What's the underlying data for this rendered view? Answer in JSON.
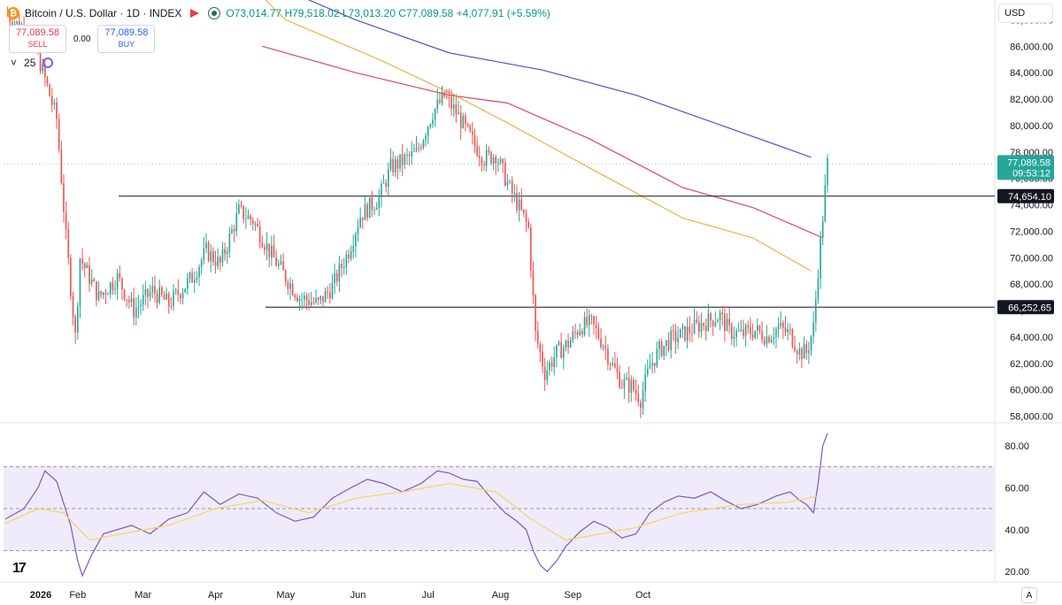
{
  "header": {
    "coin_symbol": "₿",
    "symbol_text": "Bitcoin / U.S. Dollar · 1D · INDEX",
    "open": "O73,014.77",
    "high": "H79,518.02",
    "low": "L73,013.20",
    "close": "C77,089.58",
    "change": "+4,077.91 (+5.59%)"
  },
  "trade": {
    "sell_price": "77,089.58",
    "sell_label": "SELL",
    "spread": "0.00",
    "buy_price": "77,089.58",
    "buy_label": "BUY"
  },
  "indicator": {
    "chevron": "˅",
    "value": "25"
  },
  "currency": "USD",
  "logo": "17",
  "auto_scale": "A",
  "colors": {
    "up": "#26a69a",
    "down": "#ef5350",
    "ma_blue": "#5b4fcf",
    "ma_red": "#d84a5b",
    "ma_orange": "#f0b04a",
    "rsi": "#7e57c2",
    "rsi_ma": "#f7d35f"
  },
  "chart_data": {
    "type": "candlestick",
    "x_ticks": [
      "2026",
      "Feb",
      "Mar",
      "Apr",
      "May",
      "Jun",
      "Jul",
      "Aug",
      "Sep",
      "Oct"
    ],
    "y_ticks": [
      "58,000.00",
      "60,000.00",
      "62,000.00",
      "64,000.00",
      "66,000.00",
      "68,000.00",
      "70,000.00",
      "72,000.00",
      "74,000.00",
      "76,000.00",
      "78,000.00",
      "80,000.00",
      "82,000.00",
      "84,000.00",
      "86,000.00",
      "88,000.00"
    ],
    "ylim": [
      57500,
      89500
    ],
    "last_price": {
      "value": 77089.58,
      "label": "77,089.58",
      "countdown": "09:53:12"
    },
    "horizontal_lines": [
      {
        "value": 74654.1,
        "label": "74,654.10"
      },
      {
        "value": 66252.65,
        "label": "66,252.65"
      }
    ],
    "close_path": [
      [
        0,
        88500
      ],
      [
        12,
        86500
      ],
      [
        22,
        80500
      ],
      [
        26,
        71500
      ],
      [
        30,
        64000
      ],
      [
        32,
        70000
      ],
      [
        40,
        67000
      ],
      [
        48,
        68500
      ],
      [
        55,
        66000
      ],
      [
        63,
        67500
      ],
      [
        70,
        66500
      ],
      [
        80,
        68500
      ],
      [
        86,
        70500
      ],
      [
        92,
        69500
      ],
      [
        100,
        73500
      ],
      [
        106,
        72800
      ],
      [
        113,
        70500
      ],
      [
        120,
        68500
      ],
      [
        126,
        67000
      ],
      [
        134,
        66500
      ],
      [
        140,
        67800
      ],
      [
        147,
        70500
      ],
      [
        152,
        73200
      ],
      [
        160,
        74500
      ],
      [
        165,
        76800
      ],
      [
        170,
        77300
      ],
      [
        176,
        77900
      ],
      [
        183,
        81000
      ],
      [
        188,
        82200
      ],
      [
        193,
        81000
      ],
      [
        200,
        78800
      ],
      [
        205,
        77500
      ],
      [
        210,
        77800
      ],
      [
        216,
        75200
      ],
      [
        220,
        73800
      ],
      [
        224,
        72200
      ],
      [
        227,
        64200
      ],
      [
        231,
        61300
      ],
      [
        236,
        62800
      ],
      [
        241,
        63500
      ],
      [
        246,
        64800
      ],
      [
        251,
        65000
      ],
      [
        256,
        63500
      ],
      [
        260,
        61800
      ],
      [
        264,
        60500
      ],
      [
        268,
        60300
      ],
      [
        272,
        59300
      ],
      [
        276,
        61800
      ],
      [
        280,
        63000
      ],
      [
        285,
        63800
      ],
      [
        290,
        64200
      ],
      [
        296,
        64800
      ],
      [
        302,
        65300
      ],
      [
        306,
        65600
      ],
      [
        310,
        64400
      ],
      [
        315,
        64200
      ],
      [
        321,
        64500
      ],
      [
        326,
        64000
      ],
      [
        331,
        64700
      ],
      [
        336,
        64200
      ],
      [
        340,
        62900
      ],
      [
        343,
        62800
      ],
      [
        346,
        64700
      ],
      [
        348,
        69100
      ],
      [
        350,
        73100
      ],
      [
        352,
        77090
      ]
    ],
    "candle_days": 353,
    "moving_averages": [
      {
        "name": "MA blue",
        "values": [
          [
            110,
            91000
          ],
          [
            150,
            88000
          ],
          [
            190,
            85500
          ],
          [
            230,
            84200
          ],
          [
            270,
            82300
          ],
          [
            310,
            79800
          ],
          [
            345,
            77600
          ]
        ]
      },
      {
        "name": "MA red",
        "values": [
          [
            110,
            86000
          ],
          [
            150,
            84000
          ],
          [
            190,
            82300
          ],
          [
            215,
            81700
          ],
          [
            250,
            79000
          ],
          [
            290,
            75300
          ],
          [
            320,
            73800
          ],
          [
            350,
            71500
          ]
        ]
      },
      {
        "name": "MA orange",
        "values": [
          [
            80,
            95000
          ],
          [
            120,
            88000
          ],
          [
            160,
            85000
          ],
          [
            190,
            82500
          ],
          [
            215,
            80200
          ],
          [
            250,
            76800
          ],
          [
            290,
            73000
          ],
          [
            320,
            71500
          ],
          [
            345,
            69000
          ]
        ]
      }
    ],
    "rsi": {
      "y_ticks": [
        "20.00",
        "40.00",
        "60.00",
        "80.00"
      ],
      "ylim": [
        15,
        88
      ],
      "band": [
        30,
        70
      ],
      "mid": 50,
      "values": [
        [
          0,
          45
        ],
        [
          8,
          50
        ],
        [
          14,
          60
        ],
        [
          17,
          68
        ],
        [
          22,
          63
        ],
        [
          28,
          42
        ],
        [
          31,
          25
        ],
        [
          33,
          18
        ],
        [
          37,
          28
        ],
        [
          42,
          38
        ],
        [
          48,
          40
        ],
        [
          54,
          42
        ],
        [
          62,
          38
        ],
        [
          70,
          45
        ],
        [
          78,
          48
        ],
        [
          85,
          58
        ],
        [
          92,
          52
        ],
        [
          100,
          57
        ],
        [
          108,
          55
        ],
        [
          116,
          48
        ],
        [
          124,
          44
        ],
        [
          132,
          46
        ],
        [
          140,
          55
        ],
        [
          148,
          60
        ],
        [
          155,
          64
        ],
        [
          162,
          62
        ],
        [
          170,
          58
        ],
        [
          178,
          62
        ],
        [
          185,
          68
        ],
        [
          190,
          67
        ],
        [
          196,
          64
        ],
        [
          202,
          63
        ],
        [
          208,
          55
        ],
        [
          214,
          48
        ],
        [
          219,
          44
        ],
        [
          223,
          40
        ],
        [
          226,
          30
        ],
        [
          229,
          23
        ],
        [
          232,
          20
        ],
        [
          236,
          25
        ],
        [
          240,
          32
        ],
        [
          246,
          39
        ],
        [
          252,
          44
        ],
        [
          258,
          41
        ],
        [
          264,
          36
        ],
        [
          270,
          38
        ],
        [
          276,
          48
        ],
        [
          282,
          53
        ],
        [
          288,
          56
        ],
        [
          295,
          55
        ],
        [
          302,
          58
        ],
        [
          308,
          54
        ],
        [
          315,
          50
        ],
        [
          322,
          52
        ],
        [
          330,
          56
        ],
        [
          336,
          58
        ],
        [
          340,
          54
        ],
        [
          343,
          52
        ],
        [
          346,
          48
        ],
        [
          348,
          62
        ],
        [
          350,
          80
        ],
        [
          352,
          86
        ]
      ],
      "ma_values": [
        [
          0,
          43
        ],
        [
          14,
          50
        ],
        [
          25,
          48
        ],
        [
          36,
          35
        ],
        [
          50,
          38
        ],
        [
          70,
          42
        ],
        [
          90,
          50
        ],
        [
          110,
          54
        ],
        [
          130,
          48
        ],
        [
          150,
          55
        ],
        [
          170,
          58
        ],
        [
          190,
          62
        ],
        [
          210,
          58
        ],
        [
          225,
          45
        ],
        [
          240,
          35
        ],
        [
          255,
          38
        ],
        [
          270,
          41
        ],
        [
          290,
          48
        ],
        [
          315,
          52
        ],
        [
          335,
          53
        ],
        [
          348,
          56
        ]
      ]
    }
  }
}
